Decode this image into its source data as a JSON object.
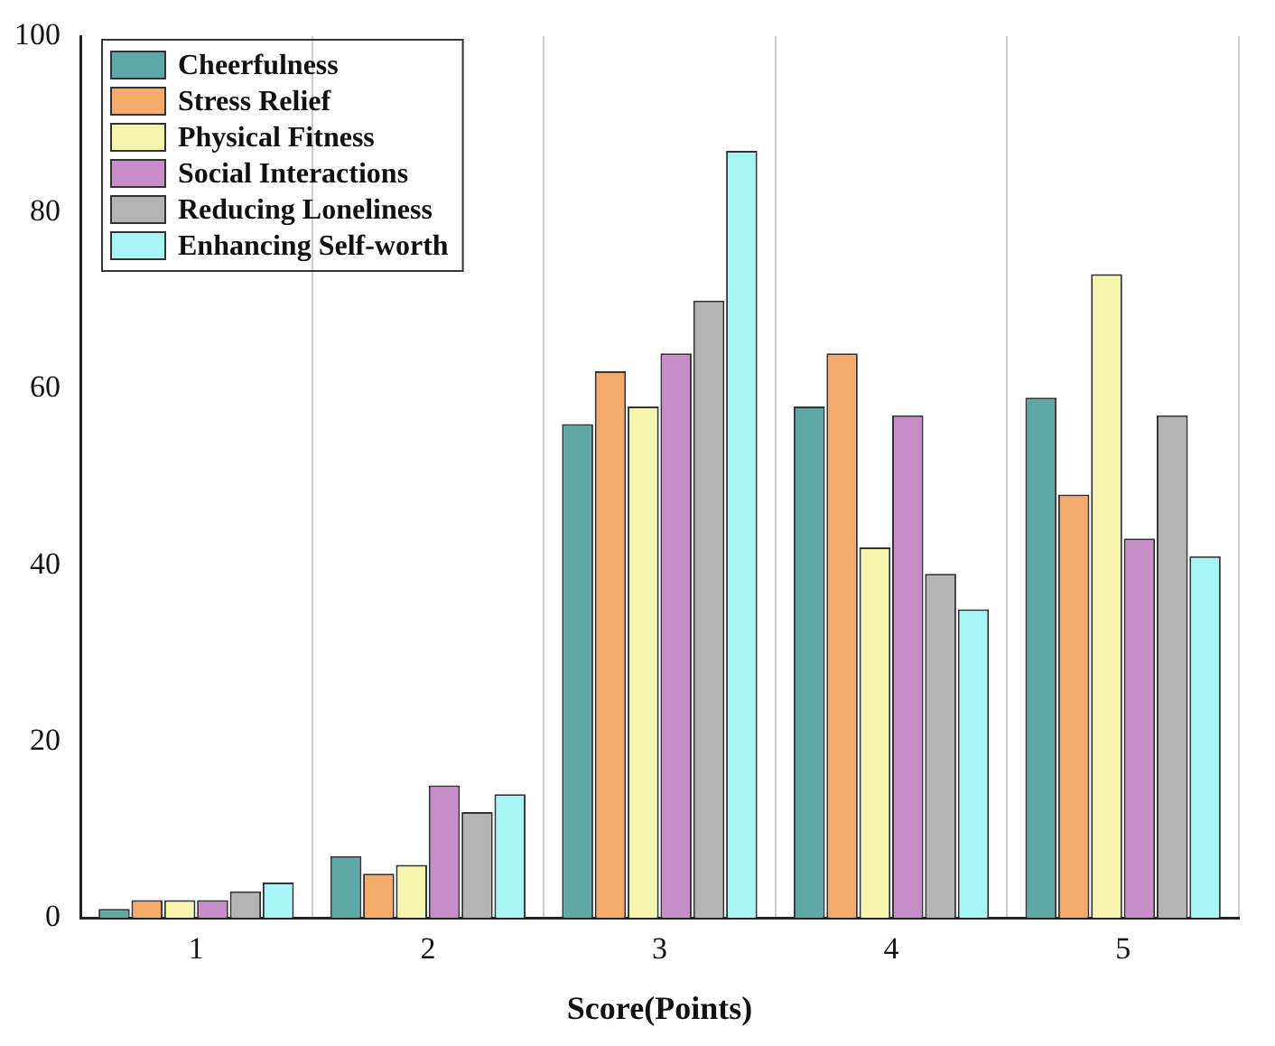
{
  "chart_data": {
    "type": "bar",
    "xlabel": "Score(Points)",
    "categories": [
      "1",
      "2",
      "3",
      "4",
      "5"
    ],
    "series": [
      {
        "name": "Cheerfulness",
        "color": "#5fa8a8",
        "values": [
          1,
          7,
          56,
          58,
          59
        ]
      },
      {
        "name": "Stress Relief",
        "color": "#f5a96a",
        "values": [
          2,
          5,
          62,
          64,
          48
        ]
      },
      {
        "name": "Physical Fitness",
        "color": "#f5f5b0",
        "values": [
          2,
          6,
          58,
          42,
          73
        ]
      },
      {
        "name": "Social Interactions",
        "color": "#c88cc8",
        "values": [
          2,
          15,
          64,
          57,
          43
        ]
      },
      {
        "name": "Reducing Loneliness",
        "color": "#b4b4b4",
        "values": [
          3,
          12,
          70,
          39,
          57
        ]
      },
      {
        "name": "Enhancing Self-worth",
        "color": "#a8f5f5",
        "values": [
          4,
          14,
          87,
          35,
          41
        ]
      }
    ],
    "ylim": [
      0,
      100
    ],
    "yticks": [
      0,
      20,
      40,
      60,
      80,
      100
    ],
    "grid": "x",
    "legend": "top left"
  }
}
